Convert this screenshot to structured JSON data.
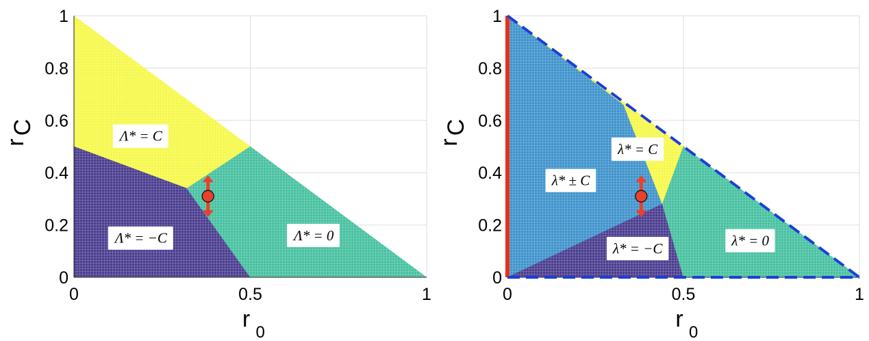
{
  "chart_data": [
    {
      "type": "area",
      "xlabel": "r",
      "xlabel_sub": "0",
      "ylabel": "r",
      "ylabel_sub": "C",
      "xlim": [
        0,
        1
      ],
      "ylim": [
        0,
        1
      ],
      "xticks": [
        {
          "value": 0,
          "label": "0"
        },
        {
          "value": 0.5,
          "label": "0.5"
        },
        {
          "value": 1,
          "label": "1"
        }
      ],
      "yticks": [
        {
          "value": 0,
          "label": "0"
        },
        {
          "value": 0.2,
          "label": "0.2"
        },
        {
          "value": 0.4,
          "label": "0.4"
        },
        {
          "value": 0.6,
          "label": "0.6"
        },
        {
          "value": 0.8,
          "label": "0.8"
        },
        {
          "value": 1,
          "label": "1"
        }
      ],
      "grid": true,
      "regions": [
        {
          "label": "Λ* = C",
          "color": "#f6f84a",
          "polygon": [
            [
              0,
              1
            ],
            [
              0,
              0.5
            ],
            [
              0.32,
              0.34
            ],
            [
              0.5,
              0.5
            ]
          ],
          "label_at": [
            0.19,
            0.54
          ]
        },
        {
          "label": "Λ* = −C",
          "color": "#4b3d8f",
          "polygon": [
            [
              0,
              0.5
            ],
            [
              0.32,
              0.34
            ],
            [
              0.5,
              0
            ],
            [
              0,
              0
            ]
          ],
          "label_at": [
            0.19,
            0.15
          ]
        },
        {
          "label": "Λ* = 0",
          "color": "#47c1a0",
          "polygon": [
            [
              0.32,
              0.34
            ],
            [
              0.5,
              0.5
            ],
            [
              1,
              0
            ],
            [
              0.5,
              0
            ]
          ],
          "label_at": [
            0.68,
            0.16
          ]
        }
      ],
      "marker": {
        "x": 0.38,
        "y": 0.31,
        "color": "#e8412c",
        "arrow_y_range": [
          0.23,
          0.39
        ]
      }
    },
    {
      "type": "area",
      "xlabel": "r",
      "xlabel_sub": "0",
      "ylabel": "r",
      "ylabel_sub": "C",
      "xlim": [
        0,
        1
      ],
      "ylim": [
        0,
        1
      ],
      "xticks": [
        {
          "value": 0,
          "label": "0"
        },
        {
          "value": 0.5,
          "label": "0.5"
        },
        {
          "value": 1,
          "label": "1"
        }
      ],
      "yticks": [
        {
          "value": 0,
          "label": "0"
        },
        {
          "value": 0.2,
          "label": "0.2"
        },
        {
          "value": 0.4,
          "label": "0.4"
        },
        {
          "value": 0.6,
          "label": "0.6"
        },
        {
          "value": 0.8,
          "label": "0.8"
        },
        {
          "value": 1,
          "label": "1"
        }
      ],
      "grid": true,
      "regions": [
        {
          "label": "λ* ± C",
          "color": "#3f93cc",
          "polygon": [
            [
              0,
              1
            ],
            [
              0.33,
              0.66
            ],
            [
              0.44,
              0.28
            ],
            [
              0,
              0
            ]
          ],
          "label_at": [
            0.18,
            0.37
          ]
        },
        {
          "label": "λ* = C",
          "color": "#f6f84a",
          "polygon": [
            [
              0,
              1
            ],
            [
              0.5,
              0.5
            ],
            [
              0.44,
              0.28
            ],
            [
              0.33,
              0.66
            ]
          ],
          "label_at": [
            0.37,
            0.49
          ]
        },
        {
          "label": "λ* = −C",
          "color": "#4b3d8f",
          "polygon": [
            [
              0,
              0
            ],
            [
              0.44,
              0.28
            ],
            [
              0.5,
              0
            ]
          ],
          "label_at": [
            0.37,
            0.11
          ]
        },
        {
          "label": "λ* = 0",
          "color": "#47c1a0",
          "polygon": [
            [
              0.44,
              0.28
            ],
            [
              0.5,
              0.5
            ],
            [
              1,
              0
            ],
            [
              0.5,
              0
            ]
          ],
          "label_at": [
            0.69,
            0.14
          ]
        }
      ],
      "boundaries": [
        {
          "style": "solid",
          "color": "#e8301c",
          "from": [
            0,
            0
          ],
          "to": [
            0,
            1
          ]
        },
        {
          "style": "dashed",
          "color": "#1c3fd8",
          "from": [
            0,
            1
          ],
          "to": [
            1,
            0
          ]
        },
        {
          "style": "dashed",
          "color": "#1c3fd8",
          "from": [
            0,
            0
          ],
          "to": [
            1,
            0
          ]
        }
      ],
      "marker": {
        "x": 0.38,
        "y": 0.31,
        "color": "#e8412c",
        "arrow_y_range": [
          0.23,
          0.39
        ]
      }
    }
  ]
}
